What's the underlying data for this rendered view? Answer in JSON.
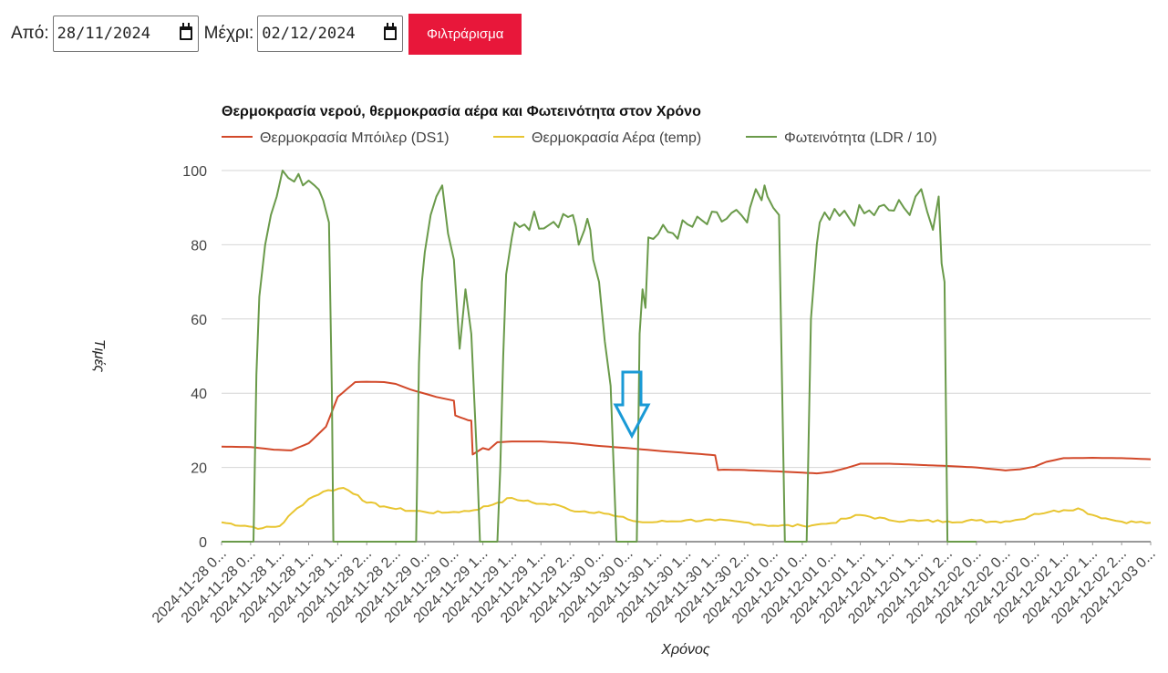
{
  "filter": {
    "from_label": "Από:",
    "from_value": "28/11/2024",
    "to_label": "Μέχρι:",
    "to_value": "02/12/2024",
    "button_label": "Φιλτράρισμα"
  },
  "colors": {
    "boiler": "#d2492a",
    "air": "#e8c531",
    "light": "#6a9a4a",
    "button": "#e8173a",
    "arrow": "#1a9ad6"
  },
  "chart_data": {
    "type": "line",
    "title": "Θερμοκρασία νερού, θερμοκρασία αέρα και Φωτεινότητα στον Χρόνο",
    "xlabel": "Χρόνος",
    "ylabel": "Τιμές",
    "ylim": [
      0,
      100
    ],
    "yticks": [
      0,
      20,
      40,
      60,
      80,
      100
    ],
    "grid": true,
    "legend_position": "top-left",
    "x_tick_labels": [
      "2024-11-28 0...",
      "2024-11-28 0...",
      "2024-11-28 1...",
      "2024-11-28 1...",
      "2024-11-28 1...",
      "2024-11-28 2...",
      "2024-11-28 2...",
      "2024-11-29 0...",
      "2024-11-29 0...",
      "2024-11-29 1...",
      "2024-11-29 1...",
      "2024-11-29 1...",
      "2024-11-29 2...",
      "2024-11-30 0...",
      "2024-11-30 0...",
      "2024-11-30 1...",
      "2024-11-30 1...",
      "2024-11-30 1...",
      "2024-11-30 2...",
      "2024-12-01 0...",
      "2024-12-01 0...",
      "2024-12-01 0...",
      "2024-12-01 1...",
      "2024-12-01 1...",
      "2024-12-01 1...",
      "2024-12-01 2...",
      "2024-12-02 0...",
      "2024-12-02 0...",
      "2024-12-02 0...",
      "2024-12-02 1...",
      "2024-12-02 1...",
      "2024-12-02 2...",
      "2024-12-03 0..."
    ],
    "x_range": [
      0,
      32
    ],
    "series": [
      {
        "name": "Θερμοκρασία Μπόιλερ (DS1)",
        "color": "#d2492a",
        "x": [
          0,
          1,
          1.8,
          2.4,
          3.0,
          3.6,
          4.0,
          4.6,
          5.0,
          5.6,
          6.0,
          6.5,
          7.4,
          8.0,
          8.05,
          8.5,
          8.6,
          8.65,
          9.0,
          9.2,
          9.5,
          10.0,
          11.0,
          12.0,
          13.0,
          14.0,
          15.0,
          16.0,
          17.0,
          17.1,
          17.3,
          18.0,
          19.0,
          20.0,
          20.5,
          21.0,
          21.5,
          22.0,
          23.0,
          24.0,
          25.0,
          26.0,
          26.5,
          27.0,
          27.5,
          28.0,
          28.4,
          29.0,
          30.0,
          31.0,
          32.0
        ],
        "values": [
          25.6,
          25.5,
          24.8,
          24.6,
          26.5,
          31.0,
          39.0,
          43.0,
          43.1,
          43.0,
          42.5,
          41.0,
          39.0,
          38.0,
          34.0,
          32.7,
          32.6,
          23.5,
          25.2,
          24.8,
          26.8,
          27.0,
          27.0,
          26.6,
          25.8,
          25.2,
          24.5,
          23.9,
          23.3,
          19.3,
          19.4,
          19.3,
          19.0,
          18.6,
          18.4,
          18.8,
          19.8,
          21.0,
          21.0,
          20.7,
          20.4,
          20.0,
          19.6,
          19.2,
          19.5,
          20.2,
          21.5,
          22.5,
          22.6,
          22.5,
          22.2
        ]
      },
      {
        "name": "Θερμοκρασία Αέρα (temp)",
        "color": "#e8c531",
        "x": [
          0,
          0.8,
          1.4,
          2.0,
          2.6,
          3.0,
          3.5,
          4.2,
          4.7,
          5.0,
          5.6,
          6.0,
          7.0,
          7.6,
          8.0,
          8.7,
          9.5,
          10.0,
          10.4,
          11.0,
          11.6,
          12.0,
          13.0,
          13.5,
          14.0,
          14.5,
          15.0,
          16.0,
          17.0,
          18.0,
          19.0,
          20.0,
          20.5,
          21.0,
          21.5,
          22.0,
          23.0,
          24.0,
          25.0,
          26.0,
          26.5,
          27.0,
          27.5,
          28.0,
          28.5,
          29.0,
          29.5,
          30.0,
          30.6,
          31.0,
          32.0
        ],
        "values": [
          5.2,
          4.3,
          3.6,
          4.2,
          9.0,
          11.5,
          13.5,
          14.5,
          12.5,
          10.5,
          9.5,
          8.8,
          8.0,
          7.8,
          8.0,
          8.5,
          10.5,
          11.8,
          11.0,
          10.2,
          9.8,
          8.5,
          8.0,
          7.0,
          6.0,
          5.2,
          5.3,
          5.8,
          5.7,
          5.2,
          4.3,
          4.3,
          4.6,
          5.0,
          6.2,
          7.2,
          5.8,
          5.6,
          5.5,
          5.7,
          5.4,
          5.5,
          6.0,
          7.5,
          8.0,
          8.5,
          9.0,
          7.2,
          6.0,
          5.4,
          5.1
        ]
      },
      {
        "name": "Φωτεινότητα (LDR / 10)",
        "color": "#6a9a4a",
        "x": [
          0,
          1.1,
          1.2,
          1.3,
          1.5,
          1.7,
          1.9,
          2.1,
          2.3,
          2.5,
          2.8,
          3.2,
          3.5,
          3.7,
          3.8,
          3.85,
          3.9,
          4.0,
          4.2,
          6.7,
          6.8,
          6.9,
          7.0,
          7.2,
          7.4,
          7.6,
          7.8,
          8.0,
          8.2,
          8.4,
          8.6,
          8.8,
          8.9,
          9.0,
          9.2,
          9.4,
          9.5,
          9.6,
          9.7,
          9.8,
          10.0,
          10.1,
          12.1,
          12.2,
          12.3,
          12.5,
          12.6,
          12.7,
          12.8,
          13.0,
          13.2,
          13.4,
          13.6,
          13.8,
          14.0,
          14.2,
          14.3,
          14.4,
          14.5,
          14.6,
          14.7,
          17.9,
          18.1,
          18.2,
          18.4,
          18.6,
          18.7,
          18.8,
          19.0,
          19.2,
          19.4,
          19.6,
          19.8,
          20.0,
          20.1,
          20.15,
          20.3,
          20.5,
          20.6,
          23.5,
          23.7,
          23.9,
          24.1,
          24.3,
          24.5,
          24.7,
          24.8,
          24.9,
          25.0,
          25.1,
          25.2,
          25.4,
          25.6,
          25.8,
          26.0
        ],
        "values": [
          0,
          0,
          45,
          66,
          80,
          88,
          93,
          100,
          98,
          97,
          96,
          96,
          92,
          86,
          40,
          0,
          0,
          0,
          0,
          0,
          48,
          70,
          78,
          88,
          93,
          96,
          83,
          76,
          52,
          68,
          56,
          22,
          0,
          0,
          0,
          0,
          0,
          20,
          50,
          72,
          82,
          86,
          88,
          85,
          80,
          84,
          87,
          84,
          76,
          70,
          54,
          42,
          0,
          0,
          0,
          0,
          0,
          56,
          68,
          63,
          82,
          88,
          86,
          90,
          95,
          92,
          96,
          93,
          90,
          88,
          0,
          0,
          0,
          0,
          0,
          0,
          60,
          80,
          86,
          90,
          88,
          93,
          95,
          89,
          84,
          93,
          75,
          70,
          0,
          0,
          0,
          0,
          0,
          0,
          0
        ]
      }
    ]
  }
}
